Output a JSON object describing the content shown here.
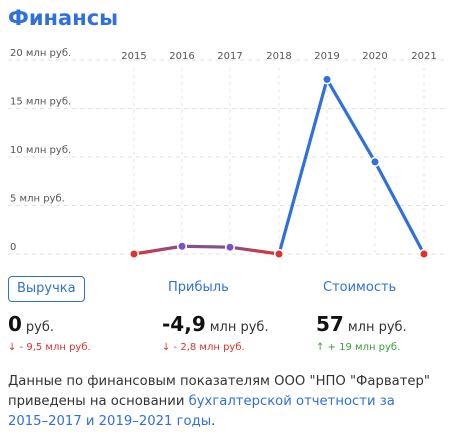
{
  "title": "Финансы",
  "chart_data": {
    "type": "line",
    "x": [
      "2015",
      "2016",
      "2017",
      "2018",
      "2019",
      "2020",
      "2021"
    ],
    "y_ticks": [
      "20 млн руб.",
      "15 млн руб.",
      "10 млн руб.",
      "5 млн руб.",
      "0"
    ],
    "ylim": [
      0,
      20
    ],
    "values": [
      0,
      0.8,
      0.7,
      0,
      18,
      9.5,
      0
    ],
    "grid": true,
    "colors": {
      "low": "#e0312f",
      "high": "#2f6fe0"
    }
  },
  "tabs": [
    {
      "label": "Выручка",
      "active": true
    },
    {
      "label": "Прибыль",
      "active": false
    },
    {
      "label": "Стоимость",
      "active": false
    }
  ],
  "kpis": [
    {
      "value": "0",
      "unit": "руб.",
      "delta": "↓ - 9,5 млн руб.",
      "trend": "down"
    },
    {
      "value": "-4,9",
      "unit": "млн руб.",
      "delta": "↓ - 2,8 млн руб.",
      "trend": "down"
    },
    {
      "value": "57",
      "unit": "млн руб.",
      "delta": "↑ + 19 млн руб.",
      "trend": "up"
    }
  ],
  "note": {
    "text": "Данные по финансовым показателям ООО \"НПО \"Фарватер\" приведены на основании ",
    "link": "бухгалтерской отчетности за 2015–2017 и 2019–2021 годы",
    "end": "."
  }
}
